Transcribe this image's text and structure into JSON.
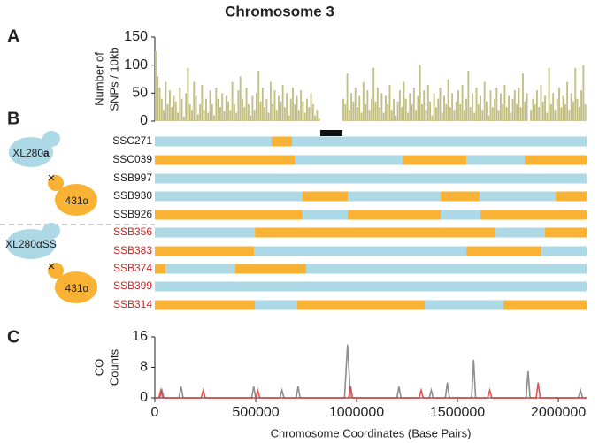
{
  "title": "Chromosome 3",
  "panels": [
    "A",
    "B",
    "C"
  ],
  "crosses": [
    {
      "left_prefix": "XL280",
      "left_suffix": "a",
      "symbol": "×",
      "right": "431α"
    },
    {
      "left_prefix": "XL280αSS",
      "left_suffix": "",
      "symbol": "×",
      "right": "431α"
    }
  ],
  "chart_data": [
    {
      "type": "histogram",
      "ylabel": [
        "Number of",
        "SNPs / 10kb"
      ],
      "color": "#c3bf83",
      "xlim": [
        0,
        2140000
      ],
      "ylim": [
        0,
        150
      ],
      "yticks": [
        0,
        50,
        100,
        150
      ],
      "centromere": [
        820000,
        930000
      ],
      "centromere_color": "#111111",
      "bins": [
        0,
        10000,
        20000,
        30000,
        40000,
        50000,
        60000,
        70000,
        80000,
        90000,
        100000,
        110000,
        120000,
        130000,
        140000,
        150000,
        160000,
        170000,
        180000,
        190000,
        200000,
        210000,
        220000,
        230000,
        240000,
        250000,
        260000,
        270000,
        280000,
        290000,
        300000,
        310000,
        320000,
        330000,
        340000,
        350000,
        360000,
        370000,
        380000,
        390000,
        400000,
        410000,
        420000,
        430000,
        440000,
        450000,
        460000,
        470000,
        480000,
        490000,
        500000,
        510000,
        520000,
        530000,
        540000,
        550000,
        560000,
        570000,
        580000,
        590000,
        600000,
        610000,
        620000,
        630000,
        640000,
        650000,
        660000,
        670000,
        680000,
        690000,
        700000,
        710000,
        720000,
        730000,
        740000,
        750000,
        760000,
        770000,
        780000,
        790000,
        800000,
        810000,
        820000,
        830000,
        840000,
        850000,
        860000,
        870000,
        880000,
        890000,
        900000,
        910000,
        920000,
        930000,
        940000,
        950000,
        960000,
        970000,
        980000,
        990000,
        1000000,
        1010000,
        1020000,
        1030000,
        1040000,
        1050000,
        1060000,
        1070000,
        1080000,
        1090000,
        1100000,
        1110000,
        1120000,
        1130000,
        1140000,
        1150000,
        1160000,
        1170000,
        1180000,
        1190000,
        1200000,
        1210000,
        1220000,
        1230000,
        1240000,
        1250000,
        1260000,
        1270000,
        1280000,
        1290000,
        1300000,
        1310000,
        1320000,
        1330000,
        1340000,
        1350000,
        1360000,
        1370000,
        1380000,
        1390000,
        1400000,
        1410000,
        1420000,
        1430000,
        1440000,
        1450000,
        1460000,
        1470000,
        1480000,
        1490000,
        1500000,
        1510000,
        1520000,
        1530000,
        1540000,
        1550000,
        1560000,
        1570000,
        1580000,
        1590000,
        1600000,
        1610000,
        1620000,
        1630000,
        1640000,
        1650000,
        1660000,
        1670000,
        1680000,
        1690000,
        1700000,
        1710000,
        1720000,
        1730000,
        1740000,
        1750000,
        1760000,
        1770000,
        1780000,
        1790000,
        1800000,
        1810000,
        1820000,
        1830000,
        1840000,
        1850000,
        1860000,
        1870000,
        1880000,
        1890000,
        1900000,
        1910000,
        1920000,
        1930000,
        1940000,
        1950000,
        1960000,
        1970000,
        1980000,
        1990000,
        2000000,
        2010000,
        2020000,
        2030000,
        2040000,
        2050000,
        2060000,
        2070000,
        2080000,
        2090000,
        2100000,
        2110000,
        2120000,
        2130000,
        2140000
      ],
      "values": [
        125,
        80,
        60,
        40,
        20,
        70,
        30,
        55,
        25,
        45,
        35,
        15,
        60,
        40,
        8,
        50,
        95,
        30,
        20,
        70,
        45,
        12,
        30,
        65,
        20,
        40,
        15,
        55,
        30,
        10,
        60,
        40,
        25,
        50,
        18,
        45,
        35,
        20,
        70,
        30,
        15,
        55,
        80,
        40,
        25,
        60,
        30,
        10,
        45,
        20,
        50,
        90,
        35,
        60,
        25,
        40,
        15,
        70,
        30,
        55,
        20,
        45,
        35,
        65,
        25,
        50,
        10,
        40,
        60,
        30,
        45,
        20,
        55,
        35,
        15,
        40,
        25,
        50,
        30,
        10,
        20,
        5,
        0,
        0,
        0,
        0,
        0,
        0,
        0,
        0,
        0,
        0,
        0,
        40,
        30,
        85,
        20,
        50,
        35,
        60,
        25,
        45,
        15,
        70,
        30,
        55,
        20,
        40,
        95,
        35,
        60,
        25,
        50,
        15,
        45,
        30,
        65,
        20,
        40,
        10,
        35,
        55,
        25,
        70,
        40,
        15,
        50,
        30,
        60,
        20,
        45,
        100,
        30,
        55,
        20,
        65,
        35,
        10,
        50,
        25,
        40,
        60,
        15,
        45,
        30,
        75,
        25,
        50,
        20,
        35,
        55,
        30,
        65,
        20,
        40,
        90,
        25,
        50,
        15,
        60,
        30,
        45,
        20,
        70,
        35,
        10,
        55,
        25,
        40,
        60,
        20,
        50,
        30,
        65,
        25,
        45,
        15,
        40,
        55,
        30,
        60,
        25,
        85,
        35,
        50,
        0,
        20,
        40,
        30,
        55,
        25,
        65,
        35,
        45,
        15,
        95,
        30,
        50,
        20,
        40,
        60,
        25,
        45,
        30,
        70,
        20,
        50,
        35,
        95,
        40,
        25,
        55,
        100,
        30
      ]
    },
    {
      "type": "tracks",
      "xlim": [
        0,
        2140000
      ],
      "parent_colors": {
        "XL280": "#add8e6",
        "431": "#f9b233"
      },
      "rows": [
        {
          "name": "SSC271",
          "name_color": "#222222",
          "starts": [
            0,
            579000,
            680000
          ],
          "parents": [
            "XL280",
            "431",
            "XL280"
          ]
        },
        {
          "name": "SSC039",
          "name_color": "#222222",
          "starts": [
            0,
            693000,
            1228000,
            1544000,
            1833000
          ],
          "parents": [
            "431",
            "XL280",
            "431",
            "XL280",
            "431"
          ]
        },
        {
          "name": "SSB997",
          "name_color": "#222222",
          "starts": [
            0
          ],
          "parents": [
            "XL280"
          ]
        },
        {
          "name": "SSB930",
          "name_color": "#222222",
          "starts": [
            0,
            732000,
            956000,
            1417000,
            1610000,
            1987000
          ],
          "parents": [
            "XL280",
            "431",
            "XL280",
            "431",
            "XL280",
            "431"
          ]
        },
        {
          "name": "SSB926",
          "name_color": "#222222",
          "starts": [
            0,
            732000,
            956000,
            1417000,
            1614000
          ],
          "parents": [
            "431",
            "XL280",
            "431",
            "XL280",
            "431"
          ]
        },
        {
          "name": "SSB356",
          "name_color": "#d42020",
          "starts": [
            0,
            496000,
            1689000,
            1934000
          ],
          "parents": [
            "XL280",
            "431",
            "XL280",
            "431"
          ]
        },
        {
          "name": "SSB383",
          "name_color": "#d42020",
          "starts": [
            0,
            491000,
            1544000,
            1917000
          ],
          "parents": [
            "431",
            "XL280",
            "431",
            "XL280"
          ]
        },
        {
          "name": "SSB374",
          "name_color": "#d42020",
          "starts": [
            0,
            53000,
            399000,
            750000
          ],
          "parents": [
            "431",
            "XL280",
            "431",
            "XL280"
          ]
        },
        {
          "name": "SSB399",
          "name_color": "#d42020",
          "starts": [
            0
          ],
          "parents": [
            "XL280"
          ]
        },
        {
          "name": "SSB314",
          "name_color": "#d42020",
          "starts": [
            0,
            496000,
            706000,
            1338000,
            1728000
          ],
          "parents": [
            "431",
            "XL280",
            "431",
            "XL280",
            "431"
          ]
        }
      ]
    },
    {
      "type": "line",
      "ylabel": [
        "CO",
        "Counts"
      ],
      "xlabel": "Chromosome Coordinates (Base Pairs)",
      "xlim": [
        0,
        2140000
      ],
      "xticks": [
        0,
        500000,
        1000000,
        1500000,
        2000000
      ],
      "ylim": [
        0,
        16
      ],
      "yticks": [
        0,
        8,
        16
      ],
      "series": [
        {
          "color": "#7a7a7a",
          "x": [
            0,
            25000,
            35000,
            45000,
            120000,
            130000,
            140000,
            480000,
            490000,
            500000,
            620000,
            630000,
            640000,
            700000,
            710000,
            720000,
            940000,
            955000,
            970000,
            1200000,
            1210000,
            1220000,
            1360000,
            1370000,
            1380000,
            1440000,
            1450000,
            1460000,
            1570000,
            1580000,
            1590000,
            1840000,
            1850000,
            1860000,
            2100000,
            2110000,
            2120000,
            2140000
          ],
          "values": [
            0,
            0,
            2,
            0,
            0,
            3,
            0,
            0,
            3,
            0,
            0,
            2,
            0,
            0,
            3,
            0,
            0,
            14,
            0,
            0,
            3,
            0,
            0,
            2,
            0,
            0,
            4,
            0,
            0,
            10,
            0,
            0,
            7,
            0,
            0,
            2,
            0,
            0
          ]
        },
        {
          "color": "#e03333",
          "x": [
            0,
            20000,
            30000,
            40000,
            230000,
            240000,
            250000,
            500000,
            510000,
            520000,
            960000,
            970000,
            980000,
            1310000,
            1320000,
            1330000,
            1650000,
            1660000,
            1670000,
            1890000,
            1900000,
            1910000,
            2140000
          ],
          "values": [
            0,
            0,
            2,
            0,
            0,
            2,
            0,
            0,
            2,
            0,
            0,
            3,
            0,
            0,
            2,
            0,
            0,
            2,
            0,
            0,
            4,
            0,
            0
          ]
        }
      ]
    }
  ]
}
